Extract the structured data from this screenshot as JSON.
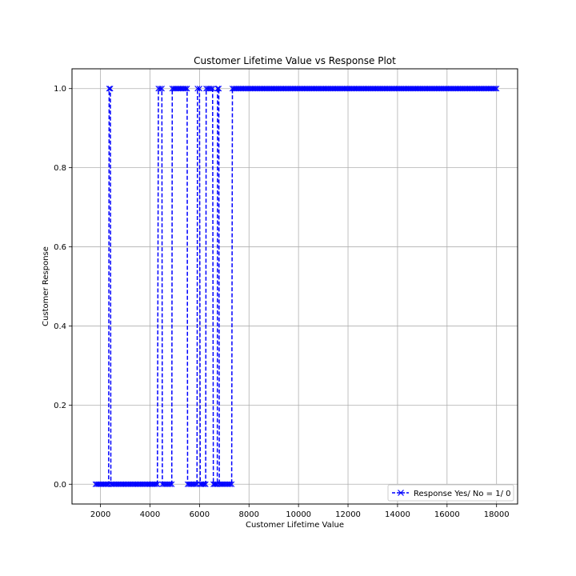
{
  "chart_data": {
    "type": "line",
    "title": "Customer Lifetime Value vs Response Plot",
    "xlabel": "Customer Lifetime Value",
    "ylabel": "Customer Response",
    "xlim": [
      850,
      18850
    ],
    "ylim": [
      -0.05,
      1.05
    ],
    "xticks": [
      2000,
      4000,
      6000,
      8000,
      10000,
      12000,
      14000,
      16000,
      18000
    ],
    "yticks": [
      0.0,
      0.2,
      0.4,
      0.6,
      0.8,
      1.0
    ],
    "xtick_labels": [
      "2000",
      "4000",
      "6000",
      "8000",
      "10000",
      "12000",
      "14000",
      "16000",
      "18000"
    ],
    "ytick_labels": [
      "0.0",
      "0.2",
      "0.4",
      "0.6",
      "0.8",
      "1.0"
    ],
    "grid": true,
    "legend_position": "bottom-right",
    "series": [
      {
        "name": "Response Yes/ No = 1/ 0",
        "color": "#0000ff",
        "linestyle": "dashed",
        "marker": "x",
        "segments": [
          {
            "from": 1800,
            "to": 2330,
            "value": 0
          },
          {
            "from": 2350,
            "to": 2400,
            "value": 1
          },
          {
            "from": 2420,
            "to": 4300,
            "value": 0
          },
          {
            "from": 4340,
            "to": 4480,
            "value": 1
          },
          {
            "from": 4500,
            "to": 4880,
            "value": 0
          },
          {
            "from": 4900,
            "to": 5500,
            "value": 1
          },
          {
            "from": 5520,
            "to": 5900,
            "value": 0
          },
          {
            "from": 5920,
            "to": 6000,
            "value": 1
          },
          {
            "from": 6030,
            "to": 6250,
            "value": 0
          },
          {
            "from": 6270,
            "to": 6530,
            "value": 1
          },
          {
            "from": 6560,
            "to": 6720,
            "value": 0
          },
          {
            "from": 6730,
            "to": 6780,
            "value": 1
          },
          {
            "from": 6800,
            "to": 7300,
            "value": 0
          },
          {
            "from": 7330,
            "to": 18000,
            "value": 1
          }
        ]
      }
    ]
  }
}
